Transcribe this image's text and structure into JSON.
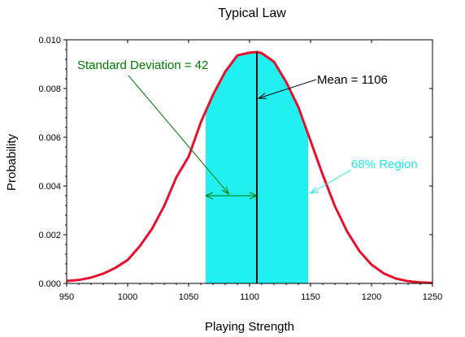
{
  "chart_data": {
    "type": "line",
    "title": "Typical Law",
    "xlabel": "Playing Strength",
    "ylabel": "Probability",
    "xlim": [
      950,
      1250
    ],
    "ylim": [
      0,
      0.01
    ],
    "xticks": [
      950,
      1000,
      1050,
      1100,
      1150,
      1200,
      1250
    ],
    "xtick_labels": [
      "950",
      "1000",
      "1050",
      "1100",
      "1150",
      "1200",
      "1250"
    ],
    "yticks": [
      0,
      0.002,
      0.004,
      0.006,
      0.008,
      0.01
    ],
    "ytick_labels": [
      "0.000",
      "0.002",
      "0.004",
      "0.006",
      "0.008",
      "0.010"
    ],
    "grid": false,
    "series": [
      {
        "x": [
          950,
          960,
          970,
          980,
          990,
          1000,
          1010,
          1020,
          1030,
          1040,
          1050,
          1060,
          1070,
          1080,
          1090,
          1100,
          1106,
          1110,
          1120,
          1130,
          1140,
          1150,
          1160,
          1170,
          1180,
          1190,
          1200,
          1210,
          1220,
          1230,
          1240,
          1250
        ],
        "y": [
          0.0001,
          0.00014,
          0.00024,
          0.0004,
          0.00064,
          0.00096,
          0.00153,
          0.00224,
          0.00318,
          0.00436,
          0.0052,
          0.00661,
          0.00774,
          0.00869,
          0.00936,
          0.00947,
          0.0095,
          0.00945,
          0.0091,
          0.00827,
          0.00724,
          0.00585,
          0.00446,
          0.00317,
          0.00213,
          0.00133,
          0.00077,
          0.00041,
          0.0002,
          9e-05,
          4e-05,
          2e-05
        ],
        "color": "#e8112d"
      }
    ],
    "shaded_region": {
      "x_from": 1064,
      "x_to": 1148,
      "color": "#20f0f0"
    },
    "mean_line": {
      "x": 1106,
      "color": "#000000"
    },
    "std_arrow": {
      "x_from": 1064,
      "x_to": 1106,
      "y": 0.0036,
      "color": "#007700"
    },
    "annotations": [
      {
        "text": "Standard Deviation = 42",
        "color": "#007700"
      },
      {
        "text": "Mean = 1106",
        "color": "#000000"
      },
      {
        "text": "68% Region",
        "color": "#20e8e8"
      }
    ]
  }
}
